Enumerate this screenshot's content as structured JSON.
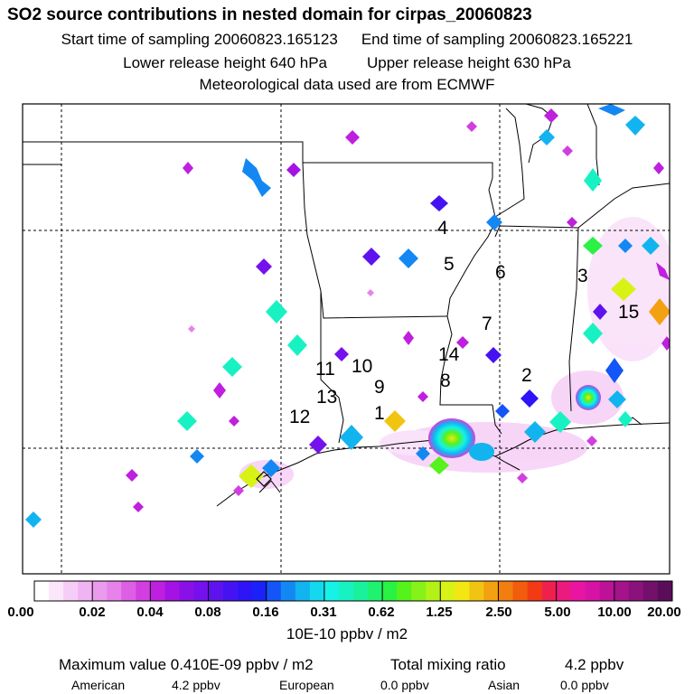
{
  "title": "SO2 source contributions in nested domain for cirpas_20060823",
  "start_label": "Start time of sampling 20060823.165123",
  "end_label": "End time of sampling 20060823.165221",
  "lower_label": "Lower release height  640 hPa",
  "upper_label": "Upper release height  630 hPa",
  "met_label": "Meteorological data used are from ECMWF",
  "site_labels": [
    "1",
    "2",
    "3",
    "4",
    "5",
    "6",
    "7",
    "8",
    "9",
    "10",
    "11",
    "12",
    "13",
    "14",
    "15"
  ],
  "colorbar": {
    "ticks": [
      "0.00",
      "0.02",
      "0.04",
      "0.08",
      "0.16",
      "0.31",
      "0.62",
      "1.25",
      "2.50",
      "5.00",
      "10.00",
      "20.00"
    ],
    "units": "10E-10 ppbv / m2",
    "colors": [
      "#ffffff",
      "#fbe6fb",
      "#f6cdf6",
      "#f0b4f2",
      "#eb9bee",
      "#e682ea",
      "#dd5fe4",
      "#d23ee0",
      "#bf1fdf",
      "#a413e4",
      "#8a10e8",
      "#7411ec",
      "#5d12ee",
      "#4513f2",
      "#2e14f6",
      "#1a22f8",
      "#1455f7",
      "#1388f3",
      "#12b4ef",
      "#14d8ee",
      "#16f2e6",
      "#18f2c3",
      "#1af29b",
      "#1ef270",
      "#29f243",
      "#55f21c",
      "#86f219",
      "#b2f217",
      "#d8f215",
      "#f2e613",
      "#f2c412",
      "#f2a110",
      "#f27e0f",
      "#f25c0d",
      "#f23b14",
      "#f0204e",
      "#ec197e",
      "#e915a2",
      "#d613a4",
      "#bd1298",
      "#a4138a",
      "#8c127b",
      "#72106a",
      "#5a0d58"
    ]
  },
  "footer": {
    "max_label": "Maximum value  0.410E-09 ppbv / m2",
    "mix_label": "Total mixing ratio",
    "mix_value": "4.2 ppbv",
    "american_label": "American",
    "american_value": "4.2 ppbv",
    "european_label": "European",
    "european_value": "0.0 ppbv",
    "asian_label": "Asian",
    "asian_value": "0.0 ppbv"
  }
}
